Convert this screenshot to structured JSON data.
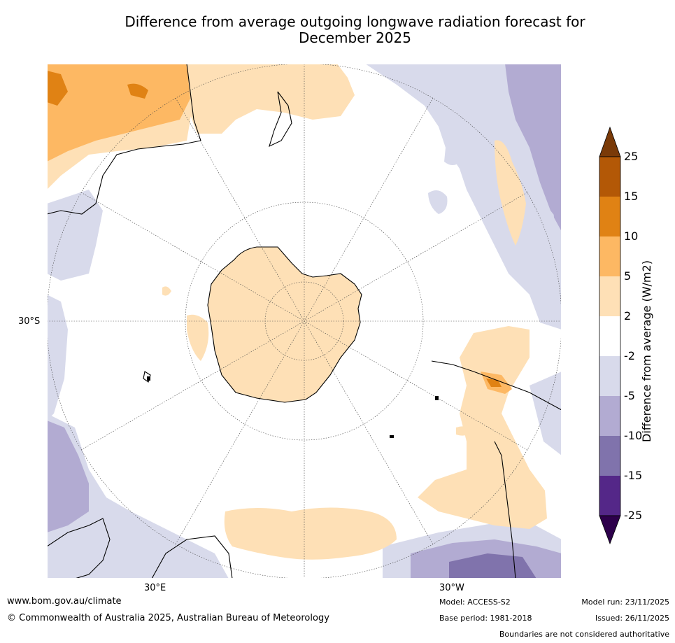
{
  "title": {
    "line1": "Difference from average outgoing longwave radiation forecast for",
    "line2": "December 2025"
  },
  "map": {
    "projection": "south-polar-stereographic",
    "lat_label": "30°S",
    "lon_labels": [
      "30°E",
      "30°W"
    ]
  },
  "legend": {
    "label": "Difference from average (W/m2)",
    "ticks": [
      "25",
      "15",
      "10",
      "5",
      "2",
      "-2",
      "-5",
      "-10",
      "-15",
      "-25"
    ],
    "colors": {
      "c_over": "#7a3a08",
      "c_15_25": "#b35806",
      "c_10_15": "#e08214",
      "c_5_10": "#fdb863",
      "c_2_5": "#fee0b6",
      "c_neutral": "#ffffff",
      "c_m5_m2": "#d8daeb",
      "c_m10_m5": "#b2abd2",
      "c_m15_m10": "#8073ac",
      "c_m25_m15": "#542788",
      "c_under": "#2d004b"
    }
  },
  "footer": {
    "website": "www.bom.gov.au/climate",
    "copyright": "© Commonwealth of Australia 2025, Australian Bureau of Meteorology",
    "model": "Model: ACCESS-S2",
    "base_period": "Base period: 1981-2018",
    "model_run": "Model run: 23/11/2025",
    "issued": "Issued: 26/11/2025",
    "disclaimer": "Boundaries are not considered authoritative"
  }
}
